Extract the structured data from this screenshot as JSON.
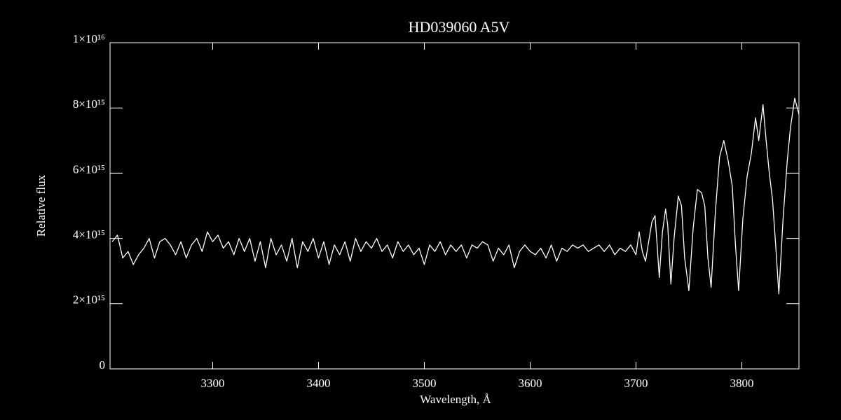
{
  "chart_data": {
    "type": "line",
    "title": "HD039060   A5V",
    "xlabel": "Wavelength, Å",
    "ylabel": "Relative flux",
    "xlim": [
      3203,
      3854
    ],
    "ylim": [
      0,
      1e+16
    ],
    "xticks": [
      3300,
      3400,
      3500,
      3600,
      3700,
      3800
    ],
    "yticks": [
      {
        "value": 0,
        "label": "0"
      },
      {
        "value": 2000000000000000.0,
        "label": "2×10¹⁵"
      },
      {
        "value": 4000000000000000.0,
        "label": "4×10¹⁵"
      },
      {
        "value": 6000000000000000.0,
        "label": "6×10¹⁵"
      },
      {
        "value": 8000000000000000.0,
        "label": "8×10¹⁵"
      },
      {
        "value": 1e+16,
        "label": "1×10¹⁶"
      }
    ],
    "series": [
      {
        "color": "#ffffff",
        "x": [
          3205,
          3210,
          3215,
          3220,
          3225,
          3230,
          3235,
          3240,
          3245,
          3250,
          3255,
          3260,
          3265,
          3270,
          3275,
          3280,
          3285,
          3290,
          3295,
          3300,
          3305,
          3310,
          3315,
          3320,
          3325,
          3330,
          3335,
          3340,
          3345,
          3350,
          3355,
          3360,
          3365,
          3370,
          3375,
          3380,
          3385,
          3390,
          3395,
          3400,
          3405,
          3410,
          3415,
          3420,
          3425,
          3430,
          3435,
          3440,
          3445,
          3450,
          3455,
          3460,
          3465,
          3470,
          3475,
          3480,
          3485,
          3490,
          3495,
          3500,
          3505,
          3510,
          3515,
          3520,
          3525,
          3530,
          3535,
          3540,
          3545,
          3550,
          3555,
          3560,
          3565,
          3570,
          3575,
          3580,
          3585,
          3590,
          3595,
          3600,
          3605,
          3610,
          3615,
          3620,
          3625,
          3630,
          3635,
          3640,
          3645,
          3650,
          3655,
          3660,
          3665,
          3670,
          3675,
          3680,
          3685,
          3690,
          3695,
          3700,
          3703,
          3706,
          3709,
          3712,
          3715,
          3718,
          3720,
          3722,
          3725,
          3728,
          3730,
          3733,
          3736,
          3740,
          3743,
          3746,
          3750,
          3754,
          3758,
          3762,
          3765,
          3768,
          3771,
          3775,
          3779,
          3783,
          3787,
          3791,
          3794,
          3797,
          3801,
          3805,
          3809,
          3813,
          3816,
          3820,
          3823,
          3826,
          3829,
          3832,
          3835,
          3839,
          3843,
          3846,
          3850,
          3854
        ],
        "values": [
          3900000000000000.0,
          4100000000000000.0,
          3400000000000000.0,
          3600000000000000.0,
          3200000000000000.0,
          3500000000000000.0,
          3700000000000000.0,
          4000000000000000.0,
          3400000000000000.0,
          3900000000000000.0,
          4000000000000000.0,
          3800000000000000.0,
          3500000000000000.0,
          3900000000000000.0,
          3400000000000000.0,
          3800000000000000.0,
          4000000000000000.0,
          3600000000000000.0,
          4200000000000000.0,
          3900000000000000.0,
          4100000000000000.0,
          3700000000000000.0,
          3900000000000000.0,
          3500000000000000.0,
          4000000000000000.0,
          3600000000000000.0,
          4000000000000000.0,
          3300000000000000.0,
          3900000000000000.0,
          3100000000000000.0,
          4000000000000000.0,
          3500000000000000.0,
          3800000000000000.0,
          3300000000000000.0,
          4000000000000000.0,
          3100000000000000.0,
          3900000000000000.0,
          3600000000000000.0,
          4000000000000000.0,
          3400000000000000.0,
          3900000000000000.0,
          3200000000000000.0,
          3800000000000000.0,
          3500000000000000.0,
          3900000000000000.0,
          3300000000000000.0,
          4000000000000000.0,
          3600000000000000.0,
          3900000000000000.0,
          3700000000000000.0,
          4000000000000000.0,
          3600000000000000.0,
          3800000000000000.0,
          3400000000000000.0,
          3900000000000000.0,
          3600000000000000.0,
          3800000000000000.0,
          3500000000000000.0,
          3700000000000000.0,
          3200000000000000.0,
          3800000000000000.0,
          3600000000000000.0,
          3900000000000000.0,
          3500000000000000.0,
          3800000000000000.0,
          3600000000000000.0,
          3800000000000000.0,
          3400000000000000.0,
          3800000000000000.0,
          3700000000000000.0,
          3900000000000000.0,
          3800000000000000.0,
          3300000000000000.0,
          3700000000000000.0,
          3500000000000000.0,
          3800000000000000.0,
          3100000000000000.0,
          3600000000000000.0,
          3800000000000000.0,
          3600000000000000.0,
          3500000000000000.0,
          3700000000000000.0,
          3400000000000000.0,
          3800000000000000.0,
          3300000000000000.0,
          3700000000000000.0,
          3600000000000000.0,
          3800000000000000.0,
          3700000000000000.0,
          3800000000000000.0,
          3600000000000000.0,
          3700000000000000.0,
          3800000000000000.0,
          3600000000000000.0,
          3800000000000000.0,
          3500000000000000.0,
          3700000000000000.0,
          3600000000000000.0,
          3800000000000000.0,
          3500000000000000.0,
          4200000000000000.0,
          3600000000000000.0,
          3300000000000000.0,
          3900000000000000.0,
          4500000000000000.0,
          4700000000000000.0,
          3800000000000000.0,
          2800000000000000.0,
          4200000000000000.0,
          4900000000000000.0,
          4400000000000000.0,
          2600000000000000.0,
          4000000000000000.0,
          5300000000000000.0,
          5000000000000000.0,
          3400000000000000.0,
          2400000000000000.0,
          4300000000000000.0,
          5500000000000000.0,
          5400000000000000.0,
          5000000000000000.0,
          3400000000000000.0,
          2500000000000000.0,
          4800000000000000.0,
          6500000000000000.0,
          7000000000000000.0,
          6400000000000000.0,
          5600000000000000.0,
          3800000000000000.0,
          2400000000000000.0,
          4600000000000000.0,
          5900000000000000.0,
          6600000000000000.0,
          7700000000000000.0,
          7000000000000000.0,
          8100000000000000.0,
          7000000000000000.0,
          6000000000000000.0,
          5200000000000000.0,
          3800000000000000.0,
          2300000000000000.0,
          4600000000000000.0,
          6400000000000000.0,
          7400000000000000.0,
          8300000000000000.0,
          7800000000000000.0
        ]
      }
    ]
  }
}
